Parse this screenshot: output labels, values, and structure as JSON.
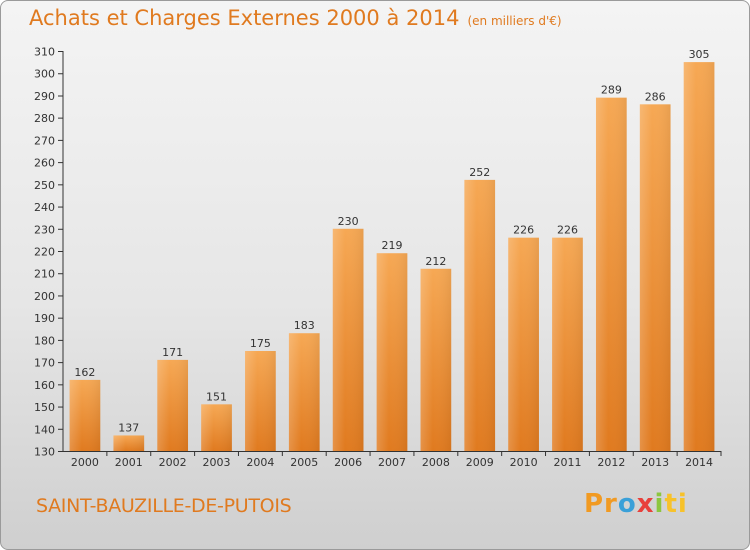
{
  "title": "Achats et Charges Externes 2000 à 2014",
  "subtitle": "(en milliers d'€)",
  "commune": "SAINT-BAUZILLE-DE-PUTOIS",
  "logo": {
    "text": "Proxiti",
    "parts": [
      "Pr",
      "o",
      "x",
      "i",
      "ti"
    ]
  },
  "colors": {
    "accent": "#e07a1f",
    "bar_top": "#f6a854",
    "bar_bottom": "#e07a1f",
    "axis": "#333333"
  },
  "chart_data": {
    "type": "bar",
    "categories": [
      "2000",
      "2001",
      "2002",
      "2003",
      "2004",
      "2005",
      "2006",
      "2007",
      "2008",
      "2009",
      "2010",
      "2011",
      "2012",
      "2013",
      "2014"
    ],
    "values": [
      162,
      137,
      171,
      151,
      175,
      183,
      230,
      219,
      212,
      252,
      226,
      226,
      289,
      286,
      305
    ],
    "title": "Achats et Charges Externes 2000 à 2014",
    "subtitle": "(en milliers d'€)",
    "xlabel": "",
    "ylabel": "",
    "ylim": [
      130,
      310
    ],
    "yticks": [
      130,
      140,
      150,
      160,
      170,
      180,
      190,
      200,
      210,
      220,
      230,
      240,
      250,
      260,
      270,
      280,
      290,
      300,
      310
    ],
    "grid": false,
    "data_labels": true
  }
}
